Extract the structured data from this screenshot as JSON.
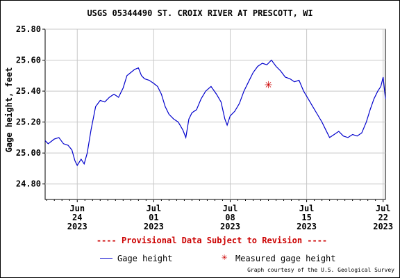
{
  "chart_data": {
    "type": "line",
    "title": "USGS 05344490 ST. CROIX RIVER AT PRESCOTT, WI",
    "ylabel": "Gage height, feet",
    "xlabel": "",
    "ylim": [
      24.7,
      25.8
    ],
    "y_ticks": [
      "25.80",
      "25.60",
      "25.40",
      "25.20",
      "25.00",
      "24.80"
    ],
    "y_tick_values": [
      25.8,
      25.6,
      25.4,
      25.2,
      25.0,
      24.8
    ],
    "x_range_days": [
      -4.2,
      40.3
    ],
    "x_ticks": [
      {
        "day": 0,
        "lines": [
          "Jun",
          "24",
          "2023"
        ]
      },
      {
        "day": 10,
        "lines": [
          "Jul",
          "01",
          "2023"
        ]
      },
      {
        "day": 20,
        "lines": [
          "Jul",
          "08",
          "2023"
        ]
      },
      {
        "day": 30,
        "lines": [
          "Jul",
          "15",
          "2023"
        ]
      },
      {
        "day": 40,
        "lines": [
          "Jul",
          "22",
          "2023"
        ]
      }
    ],
    "grid": true,
    "series": [
      {
        "name": "Gage height",
        "color": "#0000cc",
        "points": [
          [
            -4.2,
            25.08
          ],
          [
            -3.8,
            25.06
          ],
          [
            -3.0,
            25.09
          ],
          [
            -2.4,
            25.1
          ],
          [
            -1.8,
            25.06
          ],
          [
            -1.2,
            25.05
          ],
          [
            -0.7,
            25.02
          ],
          [
            -0.3,
            24.95
          ],
          [
            0.0,
            24.92
          ],
          [
            0.5,
            24.96
          ],
          [
            0.9,
            24.93
          ],
          [
            1.3,
            25.0
          ],
          [
            1.8,
            25.15
          ],
          [
            2.4,
            25.3
          ],
          [
            3.0,
            25.34
          ],
          [
            3.6,
            25.33
          ],
          [
            4.2,
            25.36
          ],
          [
            4.8,
            25.38
          ],
          [
            5.4,
            25.36
          ],
          [
            6.0,
            25.42
          ],
          [
            6.5,
            25.5
          ],
          [
            7.0,
            25.52
          ],
          [
            7.5,
            25.54
          ],
          [
            8.0,
            25.55
          ],
          [
            8.4,
            25.5
          ],
          [
            8.8,
            25.48
          ],
          [
            9.4,
            25.47
          ],
          [
            10.0,
            25.45
          ],
          [
            10.5,
            25.43
          ],
          [
            11.0,
            25.38
          ],
          [
            11.5,
            25.3
          ],
          [
            12.0,
            25.25
          ],
          [
            12.6,
            25.22
          ],
          [
            13.2,
            25.2
          ],
          [
            13.8,
            25.15
          ],
          [
            14.2,
            25.1
          ],
          [
            14.6,
            25.22
          ],
          [
            15.0,
            25.26
          ],
          [
            15.6,
            25.28
          ],
          [
            16.2,
            25.35
          ],
          [
            16.8,
            25.4
          ],
          [
            17.5,
            25.43
          ],
          [
            18.2,
            25.38
          ],
          [
            18.8,
            25.33
          ],
          [
            19.3,
            25.22
          ],
          [
            19.6,
            25.18
          ],
          [
            20.0,
            25.24
          ],
          [
            20.6,
            25.27
          ],
          [
            21.2,
            25.32
          ],
          [
            21.8,
            25.4
          ],
          [
            22.4,
            25.46
          ],
          [
            23.0,
            25.52
          ],
          [
            23.6,
            25.56
          ],
          [
            24.2,
            25.58
          ],
          [
            24.8,
            25.57
          ],
          [
            25.4,
            25.6
          ],
          [
            26.0,
            25.56
          ],
          [
            26.6,
            25.53
          ],
          [
            27.2,
            25.49
          ],
          [
            27.8,
            25.48
          ],
          [
            28.4,
            25.46
          ],
          [
            29.0,
            25.47
          ],
          [
            29.6,
            25.4
          ],
          [
            30.2,
            25.35
          ],
          [
            30.8,
            25.3
          ],
          [
            31.4,
            25.25
          ],
          [
            32.0,
            25.2
          ],
          [
            32.5,
            25.15
          ],
          [
            33.0,
            25.1
          ],
          [
            33.6,
            25.12
          ],
          [
            34.2,
            25.14
          ],
          [
            34.8,
            25.11
          ],
          [
            35.4,
            25.1
          ],
          [
            36.0,
            25.12
          ],
          [
            36.6,
            25.11
          ],
          [
            37.2,
            25.13
          ],
          [
            37.8,
            25.2
          ],
          [
            38.3,
            25.28
          ],
          [
            38.8,
            25.35
          ],
          [
            39.3,
            25.4
          ],
          [
            39.7,
            25.43
          ],
          [
            40.0,
            25.49
          ],
          [
            40.3,
            25.35
          ]
        ]
      }
    ],
    "measurements": [
      {
        "name": "Measured gage height",
        "color": "#cc0000",
        "day": 25.0,
        "value": 25.44
      }
    ]
  },
  "notice": "---- Provisional Data Subject to Revision ----",
  "legend": {
    "items": [
      {
        "label": "Gage height",
        "symbol": "line-icon",
        "color": "#0000cc"
      },
      {
        "label": "Measured gage height",
        "symbol": "asterisk-icon",
        "color": "#cc0000"
      }
    ]
  },
  "credit": "Graph courtesy of the U.S. Geological Survey"
}
